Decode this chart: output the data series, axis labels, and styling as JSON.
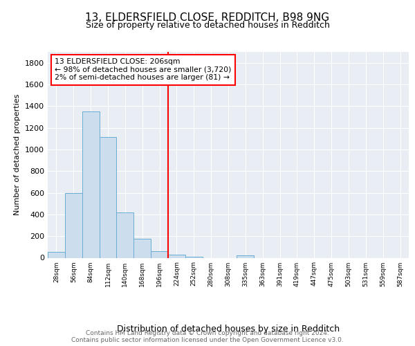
{
  "title1": "13, ELDERSFIELD CLOSE, REDDITCH, B98 9NG",
  "title2": "Size of property relative to detached houses in Redditch",
  "xlabel": "Distribution of detached houses by size in Redditch",
  "ylabel": "Number of detached properties",
  "footer1": "Contains HM Land Registry data © Crown copyright and database right 2024.",
  "footer2": "Contains public sector information licensed under the Open Government Licence v3.0.",
  "annotation_line1": "13 ELDERSFIELD CLOSE: 206sqm",
  "annotation_line2": "← 98% of detached houses are smaller (3,720)",
  "annotation_line3": "2% of semi-detached houses are larger (81) →",
  "bin_labels": [
    "28sqm",
    "56sqm",
    "84sqm",
    "112sqm",
    "140sqm",
    "168sqm",
    "196sqm",
    "224sqm",
    "252sqm",
    "280sqm",
    "308sqm",
    "335sqm",
    "363sqm",
    "391sqm",
    "419sqm",
    "447sqm",
    "475sqm",
    "503sqm",
    "531sqm",
    "559sqm",
    "587sqm"
  ],
  "bar_heights": [
    55,
    600,
    1350,
    1115,
    420,
    175,
    60,
    30,
    10,
    0,
    0,
    20,
    0,
    0,
    0,
    0,
    0,
    0,
    0,
    0,
    0
  ],
  "bar_color": "#ccdded",
  "bar_edge_color": "#6aadd5",
  "red_line_x": 6.5,
  "ylim": [
    0,
    1900
  ],
  "yticks": [
    0,
    200,
    400,
    600,
    800,
    1000,
    1200,
    1400,
    1600,
    1800
  ],
  "fig_bg_color": "#ffffff",
  "plot_bg_color": "#e8eef4",
  "property_sqm": 206
}
